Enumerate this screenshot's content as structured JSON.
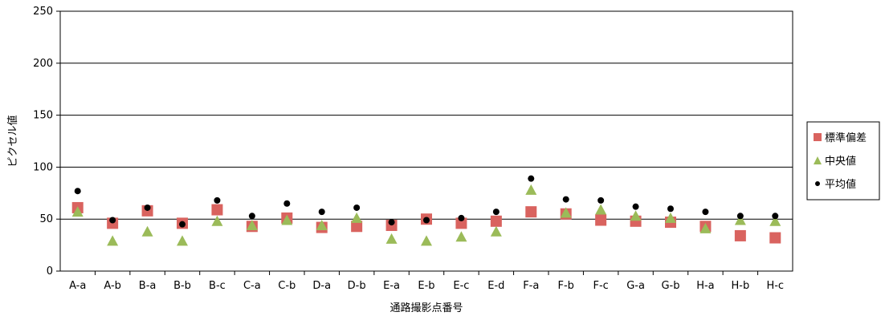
{
  "chart_data": {
    "type": "scatter",
    "xlabel": "通路撮影点番号",
    "ylabel": "ピクセル値",
    "ylim": [
      0,
      250
    ],
    "yticks": [
      0,
      50,
      100,
      150,
      200,
      250
    ],
    "grid": true,
    "legend_position": "right",
    "categories": [
      "A-a",
      "A-b",
      "B-a",
      "B-b",
      "B-c",
      "C-a",
      "C-b",
      "D-a",
      "D-b",
      "E-a",
      "E-b",
      "E-c",
      "E-d",
      "F-a",
      "F-b",
      "F-c",
      "G-a",
      "G-b",
      "H-a",
      "H-b",
      "H-c"
    ],
    "series": [
      {
        "name": "標準偏差",
        "marker": "square",
        "color": "#d9635f",
        "values": [
          61,
          46,
          58,
          46,
          59,
          43,
          51,
          42,
          43,
          44,
          50,
          46,
          48,
          57,
          55,
          49,
          48,
          47,
          43,
          34,
          32
        ]
      },
      {
        "name": "中央値",
        "marker": "triangle",
        "color": "#9bbb59",
        "values": [
          57,
          29,
          38,
          29,
          48,
          44,
          49,
          44,
          51,
          31,
          29,
          33,
          38,
          78,
          56,
          59,
          53,
          51,
          41,
          49,
          48
        ]
      },
      {
        "name": "平均値",
        "marker": "circle",
        "color": "#000000",
        "values": [
          77,
          49,
          61,
          45,
          68,
          53,
          65,
          57,
          61,
          47,
          49,
          51,
          57,
          89,
          69,
          68,
          62,
          60,
          57,
          53,
          53
        ]
      }
    ]
  }
}
